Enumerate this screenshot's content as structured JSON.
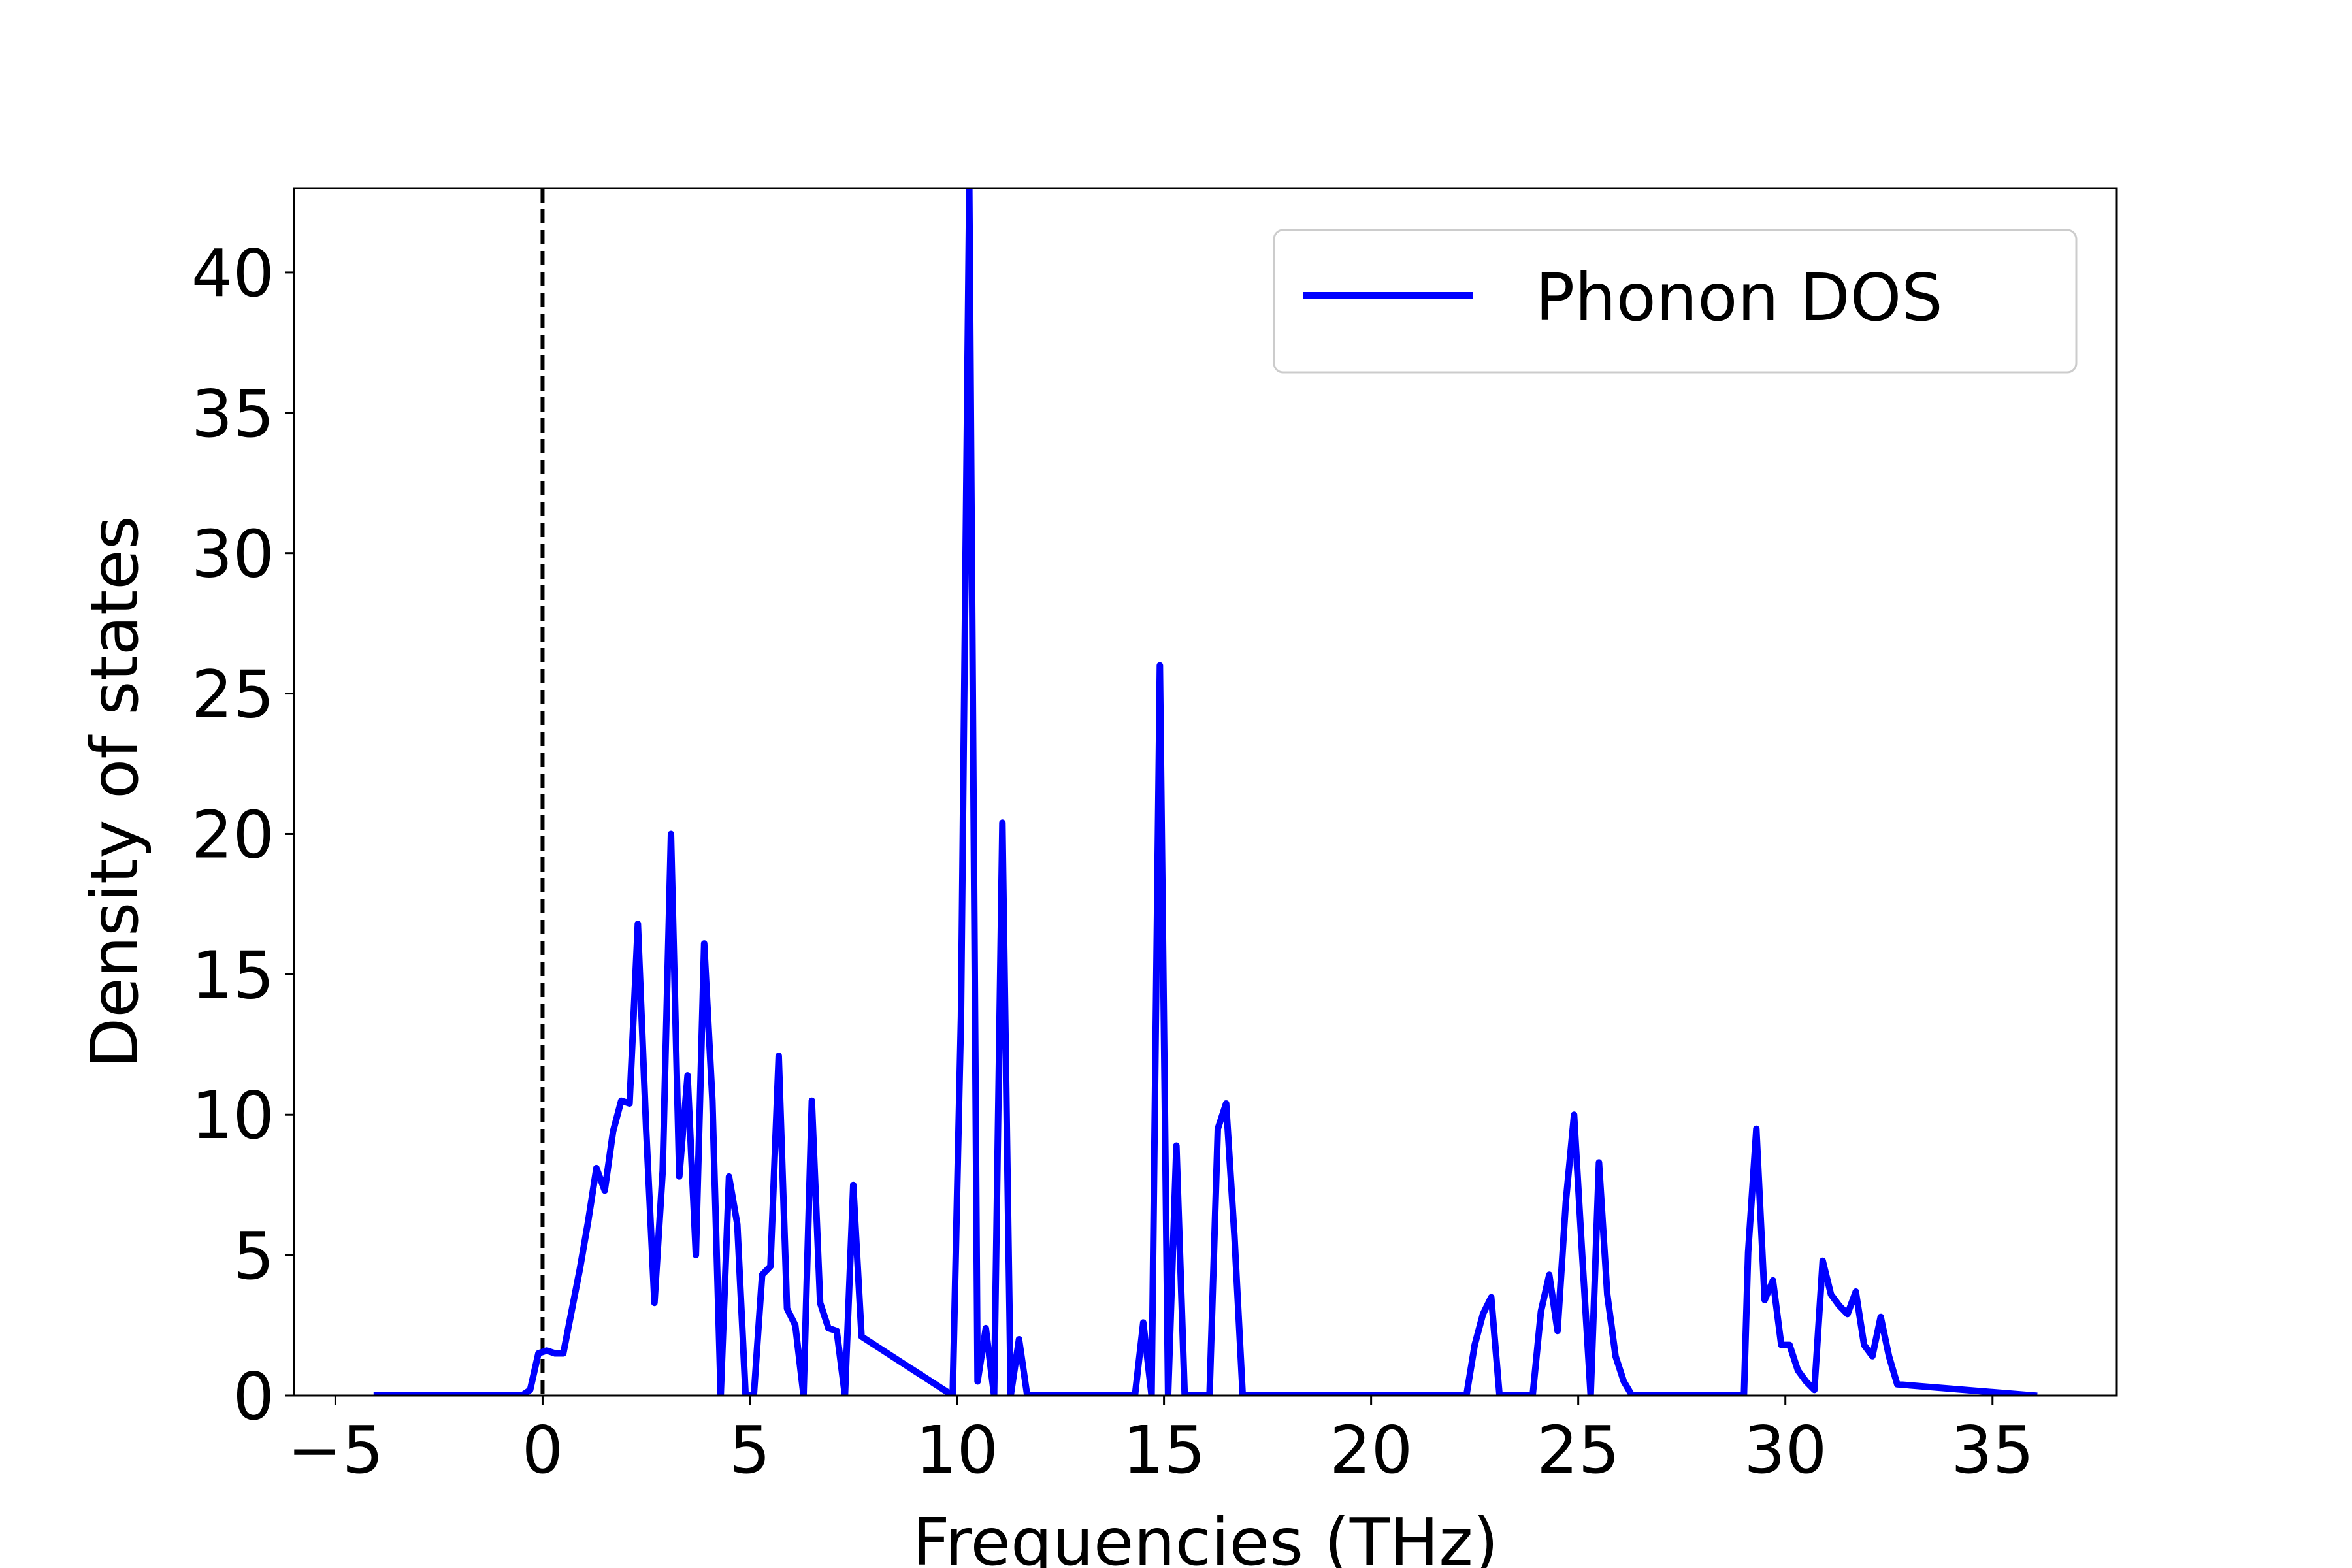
{
  "chart_data": {
    "type": "line",
    "title": "",
    "xlabel": "Frequencies (THz)",
    "ylabel": "Density of states",
    "xlim": [
      -6,
      38
    ],
    "ylim": [
      0,
      43
    ],
    "xticks": [
      -5,
      0,
      5,
      10,
      15,
      20,
      25,
      30,
      35
    ],
    "xtick_labels": [
      "−5",
      "0",
      "5",
      "10",
      "15",
      "20",
      "25",
      "30",
      "35"
    ],
    "yticks": [
      0,
      5,
      10,
      15,
      20,
      25,
      30,
      35,
      40
    ],
    "ytick_labels": [
      "0",
      "5",
      "10",
      "15",
      "20",
      "25",
      "30",
      "35",
      "40"
    ],
    "grid": false,
    "legend_position": "top-right",
    "reference_line": {
      "x": 0,
      "style": "dashed",
      "color": "#000000"
    },
    "series": [
      {
        "name": "Phonon DOS",
        "color": "#0000ff",
        "x": [
          -4.0,
          -0.5,
          -0.3,
          -0.1,
          0.1,
          0.3,
          0.5,
          0.9,
          1.1,
          1.3,
          1.5,
          1.7,
          1.9,
          2.1,
          2.3,
          2.5,
          2.7,
          2.9,
          3.1,
          3.3,
          3.5,
          3.7,
          3.9,
          4.1,
          4.3,
          4.5,
          4.7,
          4.9,
          5.1,
          5.3,
          5.5,
          5.7,
          5.9,
          6.1,
          6.3,
          6.5,
          6.7,
          6.9,
          7.1,
          7.3,
          7.5,
          7.7,
          9.9,
          10.1,
          10.3,
          10.5,
          10.7,
          10.9,
          11.1,
          11.3,
          11.5,
          11.7,
          14.3,
          14.5,
          14.7,
          14.9,
          15.1,
          15.3,
          15.5,
          15.7,
          16.1,
          16.3,
          16.5,
          16.7,
          16.9,
          22.3,
          22.5,
          22.7,
          22.9,
          23.1,
          23.9,
          24.1,
          24.3,
          24.5,
          24.7,
          24.9,
          25.1,
          25.3,
          25.5,
          25.7,
          25.9,
          26.1,
          26.3,
          26.5,
          29.0,
          29.1,
          29.3,
          29.5,
          29.7,
          29.9,
          30.1,
          30.3,
          30.5,
          30.7,
          30.9,
          31.1,
          31.3,
          31.5,
          31.7,
          31.9,
          32.1,
          32.3,
          32.5,
          32.7,
          36.0
        ],
        "values": [
          0,
          0,
          0.2,
          1.5,
          1.6,
          1.5,
          1.5,
          4.5,
          6.2,
          8.1,
          7.3,
          9.4,
          10.5,
          10.4,
          16.8,
          9.5,
          3.3,
          8.0,
          20.0,
          7.8,
          11.4,
          5.0,
          16.1,
          10.5,
          0,
          7.8,
          6.1,
          0,
          0,
          4.3,
          4.6,
          12.1,
          3.1,
          2.5,
          0,
          10.5,
          3.3,
          2.4,
          2.3,
          0,
          7.5,
          2.1,
          0,
          13.5,
          43.0,
          0.5,
          2.4,
          0,
          20.4,
          0,
          2.0,
          0,
          0,
          2.6,
          0,
          26.0,
          0,
          8.9,
          0,
          0,
          0,
          9.5,
          10.4,
          5.7,
          0,
          0,
          1.8,
          2.9,
          3.5,
          0,
          0,
          3.0,
          4.3,
          2.3,
          6.9,
          10.0,
          4.9,
          0,
          8.3,
          3.6,
          1.4,
          0.5,
          0,
          0,
          0,
          5.1,
          9.5,
          3.4,
          4.1,
          1.8,
          1.8,
          0.9,
          0.5,
          0.2,
          4.8,
          3.6,
          3.2,
          2.9,
          3.7,
          1.8,
          1.4,
          2.8,
          1.4,
          0.4,
          0
        ]
      }
    ]
  }
}
